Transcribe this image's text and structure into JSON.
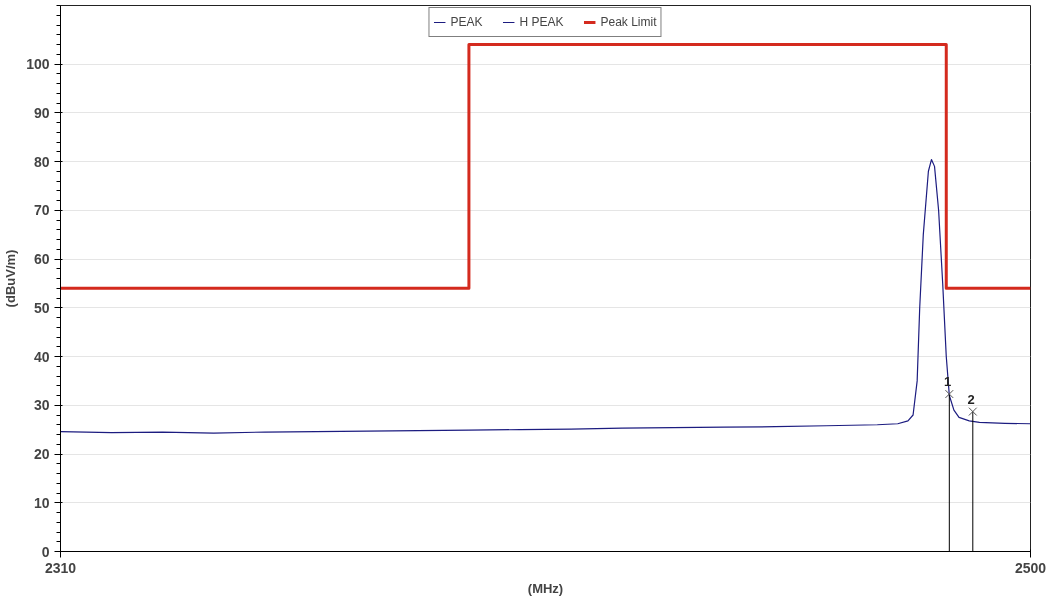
{
  "chart_data": {
    "type": "line",
    "xlabel": "(MHz)",
    "ylabel": "(dBuV/m)",
    "xlim": [
      2310,
      2500
    ],
    "ylim": [
      0,
      112
    ],
    "xticks": [
      2310,
      2500
    ],
    "yticks": [
      0,
      10,
      20,
      30,
      40,
      50,
      60,
      70,
      80,
      90,
      100
    ],
    "grid": "y",
    "legend": "top",
    "line_style": "solid",
    "series": [
      {
        "name": "PEAK",
        "color": "#1c1c80",
        "x": [
          2310,
          2320,
          2330,
          2340,
          2350,
          2360,
          2370,
          2380,
          2390,
          2400,
          2410,
          2420,
          2430,
          2440,
          2450,
          2460,
          2470,
          2474,
          2476,
          2477,
          2477.8,
          2478.3,
          2479,
          2480,
          2480.6,
          2481.2,
          2482,
          2482.8,
          2483.5,
          2484.1,
          2485,
          2486,
          2488,
          2490,
          2495,
          2500
        ],
        "values": [
          24.6,
          24.4,
          24.5,
          24.3,
          24.5,
          24.6,
          24.7,
          24.8,
          24.9,
          25.0,
          25.1,
          25.3,
          25.4,
          25.5,
          25.6,
          25.8,
          26.0,
          26.2,
          26.8,
          28,
          35,
          50,
          65,
          78,
          80.4,
          79,
          70,
          55,
          40,
          32,
          29,
          27.5,
          26.8,
          26.5,
          26.3,
          26.2
        ]
      },
      {
        "name": "H PEAK",
        "color": "#1c1c80"
      },
      {
        "name": "Peak Limit",
        "color": "#d42a1e",
        "x": [
          2310,
          2390,
          2390,
          2483.5,
          2483.5,
          2500
        ],
        "values": [
          54,
          54,
          104,
          104,
          54,
          54
        ]
      },
      {
        "type": "lollipop",
        "color": "#555555",
        "marker": "cross",
        "x": [
          2484.1,
          2488.7
        ],
        "values": [
          32.3,
          28.7
        ]
      }
    ],
    "annotations": [
      {
        "text": "1",
        "x": 2484.1,
        "y": 32.3
      },
      {
        "text": "2",
        "x": 2488.7,
        "y": 28.7
      }
    ]
  }
}
